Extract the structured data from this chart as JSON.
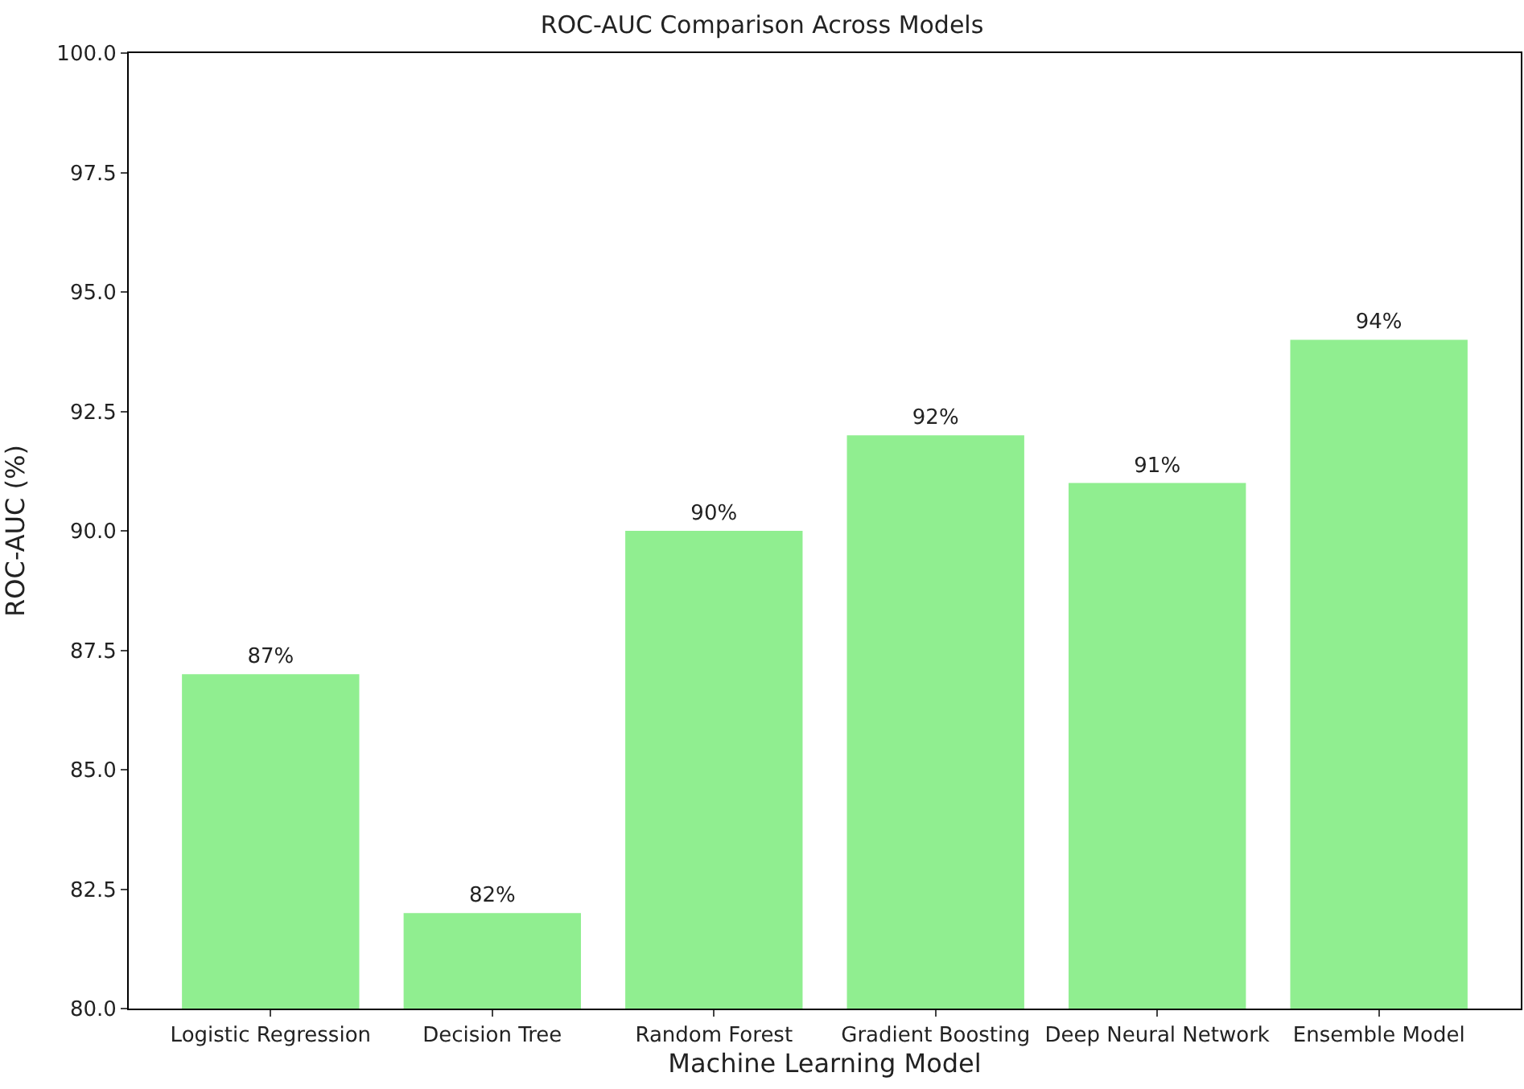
{
  "chart_data": {
    "type": "bar",
    "title": "ROC-AUC Comparison Across Models",
    "xlabel": "Machine Learning Model",
    "ylabel": "ROC-AUC (%)",
    "categories": [
      "Logistic Regression",
      "Decision Tree",
      "Random Forest",
      "Gradient Boosting",
      "Deep Neural Network",
      "Ensemble Model"
    ],
    "values": [
      87,
      82,
      90,
      92,
      91,
      94
    ],
    "value_labels": [
      "87%",
      "82%",
      "90%",
      "92%",
      "91%",
      "94%"
    ],
    "color": "#90ee90",
    "ylim": [
      80,
      100
    ],
    "yticks": [
      {
        "value": 80,
        "label": "80.0"
      },
      {
        "value": 82.5,
        "label": "82.5"
      },
      {
        "value": 85,
        "label": "85.0"
      },
      {
        "value": 87.5,
        "label": "87.5"
      },
      {
        "value": 90,
        "label": "90.0"
      },
      {
        "value": 92.5,
        "label": "92.5"
      },
      {
        "value": 95,
        "label": "95.0"
      },
      {
        "value": 97.5,
        "label": "97.5"
      },
      {
        "value": 100,
        "label": "100.0"
      }
    ],
    "grid": false,
    "legend": false
  }
}
